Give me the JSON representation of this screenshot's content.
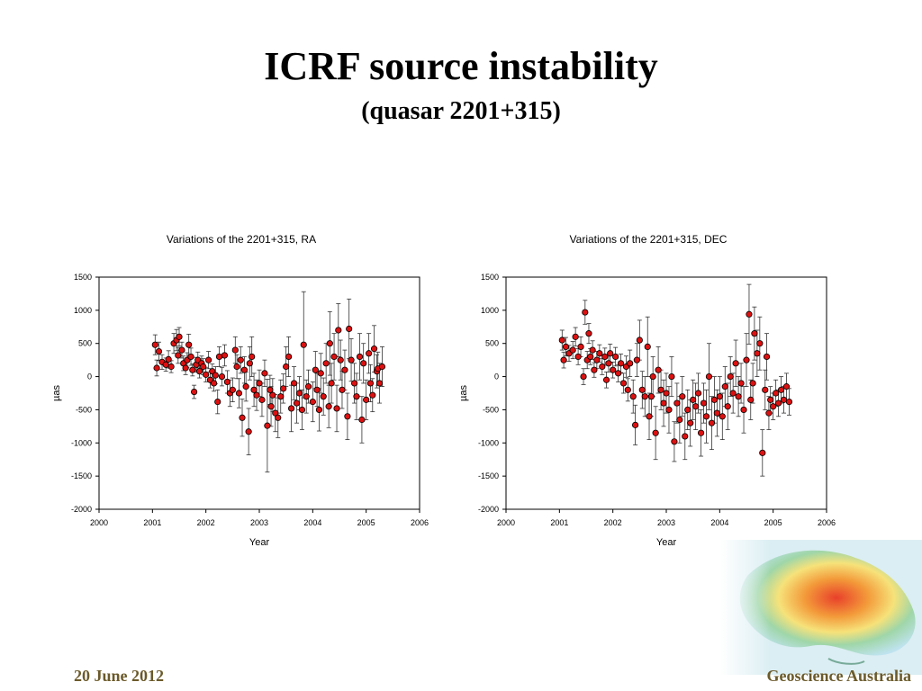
{
  "slide": {
    "title": "ICRF source instability",
    "subtitle": "(quasar 2201+315)",
    "footer_date": "20 June 2012",
    "footer_org": "Geoscience Australia"
  },
  "colors": {
    "marker": "#dd1111",
    "footer": "#6b5a2a"
  },
  "chart_data": [
    {
      "type": "scatter",
      "title": "Variations of the 2201+315, RA",
      "xlabel": "Year",
      "ylabel": "µas",
      "xlim": [
        2000,
        2006
      ],
      "ylim": [
        -2000,
        1500
      ],
      "xticks": [
        "2000",
        "2001",
        "2002",
        "2003",
        "2004",
        "2005",
        "2006"
      ],
      "yticks": [
        "1500",
        "1000",
        "500",
        "0",
        "-500",
        "-1000",
        "-1500",
        "-2000"
      ],
      "grid": false,
      "error_bars": true,
      "points": [
        [
          2001.05,
          480,
          150
        ],
        [
          2001.08,
          130,
          120
        ],
        [
          2001.12,
          380,
          140
        ],
        [
          2001.18,
          220,
          110
        ],
        [
          2001.25,
          180,
          100
        ],
        [
          2001.3,
          260,
          130
        ],
        [
          2001.35,
          150,
          90
        ],
        [
          2001.4,
          500,
          150
        ],
        [
          2001.45,
          550,
          160
        ],
        [
          2001.48,
          320,
          120
        ],
        [
          2001.5,
          600,
          140
        ],
        [
          2001.55,
          400,
          120
        ],
        [
          2001.58,
          200,
          110
        ],
        [
          2001.62,
          130,
          100
        ],
        [
          2001.65,
          250,
          110
        ],
        [
          2001.68,
          480,
          160
        ],
        [
          2001.72,
          300,
          130
        ],
        [
          2001.75,
          100,
          90
        ],
        [
          2001.78,
          -230,
          100
        ],
        [
          2001.82,
          180,
          110
        ],
        [
          2001.85,
          250,
          120
        ],
        [
          2001.88,
          80,
          100
        ],
        [
          2001.92,
          200,
          110
        ],
        [
          2001.95,
          150,
          120
        ],
        [
          2002.0,
          30,
          110
        ],
        [
          2002.05,
          250,
          130
        ],
        [
          2002.08,
          -50,
          120
        ],
        [
          2002.12,
          80,
          110
        ],
        [
          2002.15,
          -100,
          120
        ],
        [
          2002.18,
          20,
          130
        ],
        [
          2002.22,
          -380,
          180
        ],
        [
          2002.25,
          300,
          150
        ],
        [
          2002.3,
          0,
          140
        ],
        [
          2002.35,
          320,
          160
        ],
        [
          2002.4,
          -80,
          170
        ],
        [
          2002.45,
          -250,
          200
        ],
        [
          2002.5,
          -200,
          180
        ],
        [
          2002.55,
          400,
          200
        ],
        [
          2002.58,
          150,
          180
        ],
        [
          2002.62,
          -250,
          220
        ],
        [
          2002.65,
          250,
          200
        ],
        [
          2002.68,
          -620,
          280
        ],
        [
          2002.72,
          100,
          200
        ],
        [
          2002.75,
          -150,
          220
        ],
        [
          2002.8,
          -830,
          350
        ],
        [
          2002.82,
          200,
          250
        ],
        [
          2002.86,
          300,
          300
        ],
        [
          2002.9,
          -200,
          250
        ],
        [
          2002.95,
          -280,
          230
        ],
        [
          2003.0,
          -100,
          200
        ],
        [
          2003.05,
          -350,
          250
        ],
        [
          2003.1,
          50,
          200
        ],
        [
          2003.15,
          -740,
          700
        ],
        [
          2003.2,
          -200,
          220
        ],
        [
          2003.22,
          -450,
          300
        ],
        [
          2003.25,
          -280,
          250
        ],
        [
          2003.3,
          -550,
          280
        ],
        [
          2003.35,
          -620,
          300
        ],
        [
          2003.4,
          -300,
          250
        ],
        [
          2003.45,
          -180,
          220
        ],
        [
          2003.5,
          150,
          300
        ],
        [
          2003.55,
          300,
          300
        ],
        [
          2003.6,
          -480,
          350
        ],
        [
          2003.65,
          -100,
          250
        ],
        [
          2003.7,
          -400,
          300
        ],
        [
          2003.75,
          -250,
          250
        ],
        [
          2003.8,
          -500,
          300
        ],
        [
          2003.83,
          480,
          800
        ],
        [
          2003.88,
          -300,
          250
        ],
        [
          2003.92,
          -150,
          250
        ],
        [
          2004.0,
          -380,
          300
        ],
        [
          2004.05,
          100,
          280
        ],
        [
          2004.08,
          -200,
          250
        ],
        [
          2004.12,
          -500,
          320
        ],
        [
          2004.15,
          50,
          300
        ],
        [
          2004.2,
          -300,
          280
        ],
        [
          2004.25,
          200,
          300
        ],
        [
          2004.3,
          -450,
          320
        ],
        [
          2004.32,
          500,
          480
        ],
        [
          2004.35,
          -100,
          300
        ],
        [
          2004.4,
          300,
          350
        ],
        [
          2004.45,
          -480,
          350
        ],
        [
          2004.48,
          700,
          400
        ],
        [
          2004.52,
          250,
          300
        ],
        [
          2004.55,
          -200,
          280
        ],
        [
          2004.6,
          100,
          300
        ],
        [
          2004.65,
          -600,
          350
        ],
        [
          2004.68,
          720,
          450
        ],
        [
          2004.72,
          250,
          320
        ],
        [
          2004.78,
          -100,
          300
        ],
        [
          2004.82,
          -300,
          350
        ],
        [
          2004.88,
          300,
          350
        ],
        [
          2004.92,
          -650,
          350
        ],
        [
          2004.95,
          200,
          300
        ],
        [
          2005.0,
          -350,
          300
        ],
        [
          2005.05,
          350,
          300
        ],
        [
          2005.08,
          -100,
          280
        ],
        [
          2005.12,
          -280,
          250
        ],
        [
          2005.15,
          420,
          350
        ],
        [
          2005.2,
          80,
          250
        ],
        [
          2005.22,
          120,
          250
        ],
        [
          2005.25,
          -100,
          300
        ],
        [
          2005.3,
          150,
          300
        ]
      ]
    },
    {
      "type": "scatter",
      "title": "Variations of the 2201+315, DEC",
      "xlabel": "Year",
      "ylabel": "µas",
      "xlim": [
        2000,
        2006
      ],
      "ylim": [
        -2000,
        1500
      ],
      "xticks": [
        "2000",
        "2001",
        "2002",
        "2003",
        "2004",
        "2005",
        "2006"
      ],
      "yticks": [
        "1500",
        "1000",
        "500",
        "0",
        "-500",
        "-1000",
        "-1500",
        "-2000"
      ],
      "grid": false,
      "error_bars": true,
      "points": [
        [
          2001.05,
          550,
          150
        ],
        [
          2001.08,
          250,
          120
        ],
        [
          2001.12,
          450,
          140
        ],
        [
          2001.18,
          350,
          120
        ],
        [
          2001.25,
          400,
          130
        ],
        [
          2001.3,
          600,
          140
        ],
        [
          2001.35,
          300,
          120
        ],
        [
          2001.4,
          450,
          150
        ],
        [
          2001.45,
          0,
          120
        ],
        [
          2001.48,
          970,
          180
        ],
        [
          2001.52,
          250,
          130
        ],
        [
          2001.55,
          650,
          150
        ],
        [
          2001.58,
          300,
          120
        ],
        [
          2001.62,
          400,
          140
        ],
        [
          2001.65,
          100,
          110
        ],
        [
          2001.7,
          250,
          130
        ],
        [
          2001.75,
          350,
          130
        ],
        [
          2001.8,
          150,
          120
        ],
        [
          2001.85,
          300,
          130
        ],
        [
          2001.88,
          -50,
          120
        ],
        [
          2001.92,
          200,
          130
        ],
        [
          2001.95,
          350,
          140
        ],
        [
          2002.0,
          100,
          120
        ],
        [
          2002.05,
          300,
          140
        ],
        [
          2002.1,
          50,
          130
        ],
        [
          2002.15,
          200,
          140
        ],
        [
          2002.2,
          -100,
          150
        ],
        [
          2002.25,
          150,
          160
        ],
        [
          2002.28,
          -200,
          170
        ],
        [
          2002.32,
          200,
          200
        ],
        [
          2002.38,
          -300,
          250
        ],
        [
          2002.42,
          -730,
          300
        ],
        [
          2002.45,
          250,
          250
        ],
        [
          2002.5,
          550,
          300
        ],
        [
          2002.55,
          -200,
          280
        ],
        [
          2002.6,
          -300,
          300
        ],
        [
          2002.65,
          450,
          450
        ],
        [
          2002.68,
          -600,
          350
        ],
        [
          2002.72,
          -300,
          300
        ],
        [
          2002.75,
          0,
          300
        ],
        [
          2002.8,
          -850,
          400
        ],
        [
          2002.85,
          100,
          350
        ],
        [
          2002.9,
          -200,
          300
        ],
        [
          2002.95,
          -400,
          350
        ],
        [
          2003.0,
          -250,
          300
        ],
        [
          2003.05,
          -500,
          350
        ],
        [
          2003.1,
          0,
          300
        ],
        [
          2003.15,
          -980,
          300
        ],
        [
          2003.2,
          -400,
          300
        ],
        [
          2003.25,
          -650,
          350
        ],
        [
          2003.3,
          -300,
          300
        ],
        [
          2003.35,
          -900,
          350
        ],
        [
          2003.4,
          -500,
          300
        ],
        [
          2003.45,
          -700,
          350
        ],
        [
          2003.5,
          -350,
          300
        ],
        [
          2003.55,
          -450,
          350
        ],
        [
          2003.6,
          -250,
          300
        ],
        [
          2003.65,
          -850,
          350
        ],
        [
          2003.7,
          -400,
          300
        ],
        [
          2003.75,
          -600,
          400
        ],
        [
          2003.8,
          0,
          500
        ],
        [
          2003.85,
          -700,
          400
        ],
        [
          2003.9,
          -350,
          350
        ],
        [
          2003.95,
          -550,
          350
        ],
        [
          2004.0,
          -300,
          300
        ],
        [
          2004.05,
          -600,
          350
        ],
        [
          2004.1,
          -150,
          300
        ],
        [
          2004.15,
          -450,
          350
        ],
        [
          2004.2,
          0,
          300
        ],
        [
          2004.25,
          -250,
          300
        ],
        [
          2004.3,
          200,
          350
        ],
        [
          2004.35,
          -300,
          300
        ],
        [
          2004.4,
          -100,
          300
        ],
        [
          2004.45,
          -500,
          350
        ],
        [
          2004.5,
          250,
          400
        ],
        [
          2004.55,
          940,
          450
        ],
        [
          2004.58,
          -350,
          300
        ],
        [
          2004.62,
          -100,
          300
        ],
        [
          2004.65,
          650,
          400
        ],
        [
          2004.7,
          350,
          350
        ],
        [
          2004.75,
          500,
          400
        ],
        [
          2004.8,
          -1150,
          350
        ],
        [
          2004.85,
          -200,
          300
        ],
        [
          2004.88,
          300,
          350
        ],
        [
          2004.92,
          -550,
          250
        ],
        [
          2004.95,
          -350,
          200
        ],
        [
          2005.0,
          -450,
          200
        ],
        [
          2005.05,
          -250,
          200
        ],
        [
          2005.1,
          -400,
          200
        ],
        [
          2005.15,
          -200,
          200
        ],
        [
          2005.2,
          -350,
          200
        ],
        [
          2005.25,
          -150,
          200
        ],
        [
          2005.3,
          -380,
          200
        ]
      ]
    }
  ]
}
